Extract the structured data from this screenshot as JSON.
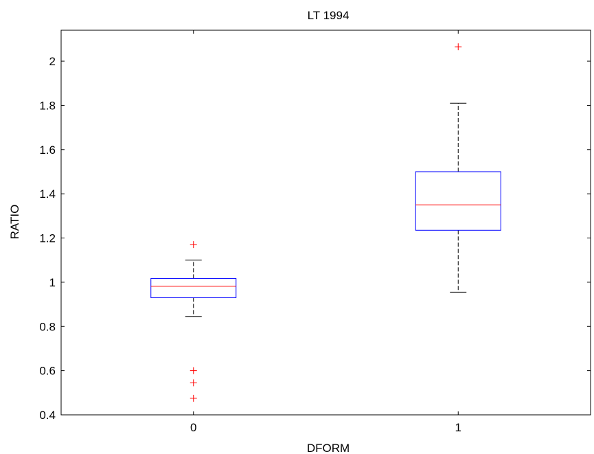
{
  "chart_data": {
    "type": "box",
    "title": "LT 1994",
    "xlabel": "DFORM",
    "ylabel": "RATIO",
    "categories": [
      "0",
      "1"
    ],
    "ylim": [
      0.4,
      2.14
    ],
    "yticks": [
      "0.4",
      "0.6",
      "0.8",
      "1",
      "1.2",
      "1.4",
      "1.6",
      "1.8",
      "2"
    ],
    "grid": false,
    "boxes": [
      {
        "category": "0",
        "whisker_low": 0.845,
        "q1": 0.93,
        "median": 0.982,
        "q3": 1.017,
        "whisker_high": 1.1,
        "outliers": [
          1.17,
          0.6,
          0.545,
          0.475
        ]
      },
      {
        "category": "1",
        "whisker_low": 0.955,
        "q1": 1.235,
        "median": 1.35,
        "q3": 1.5,
        "whisker_high": 1.81,
        "outliers": [
          2.065
        ]
      }
    ],
    "colors": {
      "box": "#0000ff",
      "median": "#ff0000",
      "whisker": "#000000",
      "outlier": "#ff0000"
    }
  }
}
